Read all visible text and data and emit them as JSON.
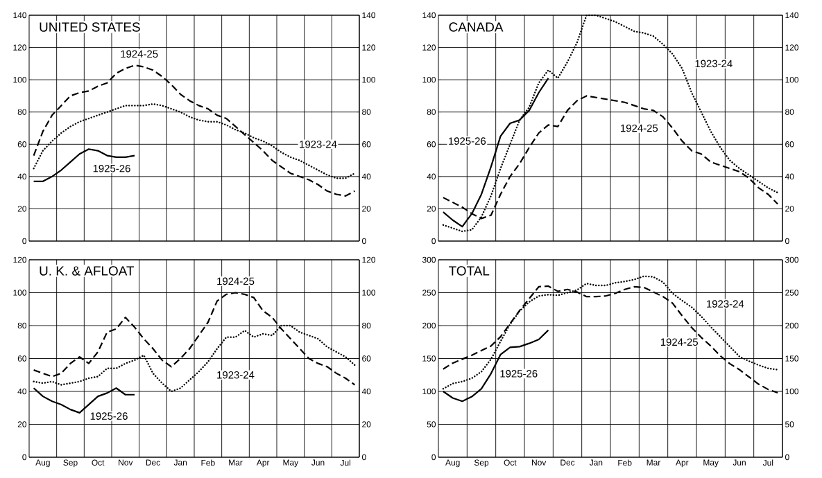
{
  "chart_data": [
    {
      "type": "line",
      "title": "UNITED STATES",
      "ylim": [
        0,
        140
      ],
      "y2lim": [
        0,
        140
      ],
      "grid": true,
      "categories": [
        null,
        null,
        null,
        null,
        null,
        null,
        null,
        null,
        null,
        null,
        null,
        null,
        null,
        null,
        null,
        null,
        null,
        null,
        null,
        null,
        null,
        null,
        null,
        null,
        null,
        null,
        null,
        null,
        null,
        null,
        null,
        null,
        null,
        null,
        null,
        null
      ],
      "yticks": [
        0,
        20,
        40,
        60,
        80,
        100,
        120,
        140
      ],
      "y2ticks": [
        0,
        20,
        40,
        60,
        80,
        100,
        120,
        140
      ],
      "series": [
        {
          "name": "1923-24",
          "color": "#000000",
          "line_style": "dotted",
          "values": [
            45,
            56,
            62,
            67,
            71,
            74,
            76,
            78,
            80,
            82,
            84,
            84,
            84,
            85,
            84,
            82,
            80,
            77,
            75,
            74,
            74,
            72,
            69,
            67,
            64,
            62,
            59,
            55,
            52,
            50,
            47,
            44,
            41,
            39,
            39,
            42
          ]
        },
        {
          "name": "1924-25",
          "color": "#000000",
          "line_style": "dashed",
          "values": [
            53,
            68,
            78,
            84,
            90,
            92,
            93,
            96,
            98,
            104,
            107,
            109,
            108,
            106,
            102,
            97,
            91,
            87,
            84,
            82,
            78,
            76,
            71,
            66,
            61,
            56,
            50,
            46,
            42,
            40,
            38,
            35,
            31,
            29,
            28,
            31
          ]
        },
        {
          "name": "1925-26",
          "color": "#000000",
          "line_style": "solid",
          "values": [
            37,
            37,
            40,
            44,
            49,
            54,
            57,
            56,
            53,
            52,
            52,
            53,
            null,
            null,
            null,
            null,
            null,
            null,
            null,
            null,
            null,
            null,
            null,
            null,
            null,
            null,
            null,
            null,
            null,
            null,
            null,
            null,
            null,
            null,
            null,
            null
          ]
        }
      ]
    },
    {
      "type": "line",
      "title": "CANADA",
      "ylim": [
        0,
        140
      ],
      "y2lim": [
        0,
        140
      ],
      "grid": true,
      "categories": [
        null,
        null,
        null,
        null,
        null,
        null,
        null,
        null,
        null,
        null,
        null,
        null,
        null,
        null,
        null,
        null,
        null,
        null,
        null,
        null,
        null,
        null,
        null,
        null,
        null,
        null,
        null,
        null,
        null,
        null,
        null,
        null,
        null,
        null,
        null,
        null
      ],
      "yticks": [
        0,
        20,
        40,
        60,
        80,
        100,
        120,
        140
      ],
      "y2ticks": [
        0,
        20,
        40,
        60,
        80,
        100,
        120,
        140
      ],
      "series": [
        {
          "name": "1923-24",
          "color": "#000000",
          "line_style": "dotted",
          "values": [
            10,
            8,
            6,
            7,
            15,
            28,
            45,
            60,
            75,
            83,
            98,
            106,
            101,
            111,
            123,
            140,
            140,
            138,
            136,
            133,
            130,
            129,
            127,
            122,
            116,
            107,
            92,
            80,
            68,
            58,
            50,
            45,
            41,
            37,
            33,
            30
          ]
        },
        {
          "name": "1924-25",
          "color": "#000000",
          "line_style": "dashed",
          "values": [
            27,
            24,
            21,
            17,
            14,
            16,
            29,
            40,
            48,
            58,
            67,
            72,
            71,
            81,
            87,
            90,
            89,
            88,
            87,
            86,
            84,
            82,
            81,
            77,
            70,
            62,
            56,
            54,
            49,
            47,
            45,
            43,
            39,
            33,
            29,
            23
          ]
        },
        {
          "name": "1925-26",
          "color": "#000000",
          "line_style": "solid",
          "values": [
            18,
            13,
            9,
            17,
            29,
            46,
            65,
            73,
            75,
            81,
            92,
            101,
            null,
            null,
            null,
            null,
            null,
            null,
            null,
            null,
            null,
            null,
            null,
            null,
            null,
            null,
            null,
            null,
            null,
            null,
            null,
            null,
            null,
            null,
            null,
            null
          ]
        }
      ]
    },
    {
      "type": "line",
      "title": "U. K. & AFLOAT",
      "ylim": [
        0,
        120
      ],
      "y2lim": [
        0,
        120
      ],
      "grid": true,
      "categories": [
        null,
        "Aug",
        null,
        null,
        "Sep",
        null,
        null,
        "Oct",
        null,
        null,
        "Nov",
        null,
        null,
        "Dec",
        null,
        null,
        "Jan",
        null,
        null,
        "Feb",
        null,
        null,
        "Mar",
        null,
        null,
        "Apr",
        null,
        null,
        "May",
        null,
        null,
        "Jun",
        null,
        null,
        "Jul",
        null
      ],
      "yticks": [
        0,
        20,
        40,
        60,
        80,
        100,
        120
      ],
      "y2ticks": [
        0,
        20,
        40,
        60,
        80,
        100,
        120
      ],
      "series": [
        {
          "name": "1923-24",
          "color": "#000000",
          "line_style": "dotted",
          "values": [
            46,
            45,
            46,
            44,
            45,
            46,
            48,
            49,
            54,
            54,
            57,
            59,
            62,
            51,
            45,
            40,
            42,
            47,
            52,
            58,
            66,
            73,
            73,
            77,
            73,
            75,
            74,
            80,
            80,
            76,
            74,
            72,
            67,
            64,
            61,
            56
          ]
        },
        {
          "name": "1924-25",
          "color": "#000000",
          "line_style": "dashed",
          "values": [
            53,
            51,
            49,
            51,
            57,
            61,
            57,
            64,
            76,
            78,
            85,
            79,
            72,
            66,
            59,
            55,
            60,
            66,
            74,
            82,
            95,
            99,
            100,
            99,
            97,
            89,
            85,
            78,
            72,
            66,
            60,
            57,
            55,
            51,
            48,
            44
          ]
        },
        {
          "name": "1925-26",
          "color": "#000000",
          "line_style": "solid",
          "values": [
            42,
            37,
            34,
            32,
            29,
            27,
            32,
            37,
            39,
            42,
            38,
            38,
            null,
            null,
            null,
            null,
            null,
            null,
            null,
            null,
            null,
            null,
            null,
            null,
            null,
            null,
            null,
            null,
            null,
            null,
            null,
            null,
            null,
            null,
            null,
            null
          ]
        }
      ]
    },
    {
      "type": "line",
      "title": "TOTAL",
      "ylim": [
        0,
        300
      ],
      "y2lim": [
        0,
        300
      ],
      "grid": true,
      "categories": [
        null,
        "Aug",
        null,
        null,
        "Sep",
        null,
        null,
        "Oct",
        null,
        null,
        "Nov",
        null,
        null,
        "Dec",
        null,
        null,
        "Jan",
        null,
        null,
        "Feb",
        null,
        null,
        "Mar",
        null,
        null,
        "Apr",
        null,
        null,
        "May",
        null,
        null,
        "Jun",
        null,
        null,
        "Jul",
        null
      ],
      "yticks": [
        0,
        50,
        100,
        150,
        200,
        250,
        300
      ],
      "y2ticks": [
        0,
        50,
        100,
        150,
        200,
        250,
        300
      ],
      "series": [
        {
          "name": "1923-24",
          "color": "#000000",
          "line_style": "dotted",
          "values": [
            104,
            112,
            115,
            120,
            130,
            149,
            176,
            202,
            222,
            236,
            245,
            247,
            246,
            250,
            254,
            264,
            261,
            261,
            265,
            267,
            270,
            275,
            274,
            266,
            249,
            238,
            228,
            214,
            198,
            183,
            168,
            153,
            146,
            140,
            135,
            133
          ]
        },
        {
          "name": "1924-25",
          "color": "#000000",
          "line_style": "dashed",
          "values": [
            134,
            143,
            149,
            155,
            162,
            169,
            183,
            203,
            223,
            241,
            259,
            260,
            252,
            255,
            251,
            244,
            244,
            245,
            249,
            255,
            259,
            258,
            251,
            244,
            234,
            215,
            197,
            182,
            169,
            154,
            142,
            133,
            122,
            111,
            103,
            98
          ]
        },
        {
          "name": "1925-26",
          "color": "#000000",
          "line_style": "solid",
          "values": [
            100,
            90,
            85,
            92,
            104,
            127,
            156,
            167,
            168,
            173,
            179,
            193,
            null,
            null,
            null,
            null,
            null,
            null,
            null,
            null,
            null,
            null,
            null,
            null,
            null,
            null,
            null,
            null,
            null,
            null,
            null,
            null,
            null,
            null,
            null,
            null
          ]
        }
      ]
    }
  ]
}
